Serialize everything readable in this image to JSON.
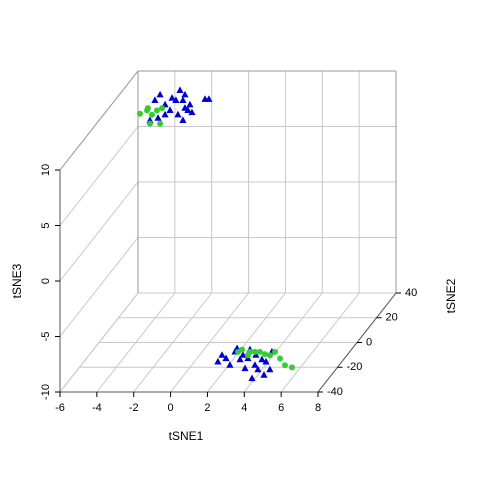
{
  "chart_data": {
    "type": "scatter3d",
    "xlabel": "tSNE1",
    "ylabel": "tSNE2",
    "zlabel": "tSNE3",
    "xlim": [
      -6,
      8
    ],
    "ylim": [
      -40,
      40
    ],
    "zlim": [
      -10,
      10
    ],
    "xticks": [
      -6,
      -4,
      -2,
      0,
      2,
      4,
      6,
      8
    ],
    "yticks": [
      -40,
      -20,
      0,
      20,
      40
    ],
    "zticks": [
      -10,
      -5,
      0,
      5,
      10
    ],
    "grid": true,
    "series": [
      {
        "color": "#0000cd",
        "marker": "triangle",
        "x": [
          -4.87,
          -4.59,
          -4.32,
          -4.05,
          -3.94,
          -3.73,
          -3.51,
          -3.35,
          -3.24,
          -3.08,
          -2.97,
          -2.86,
          -3.62,
          -3.35,
          -4.32,
          -2.15,
          -1.94,
          -5.14,
          -4.7,
          -3.24,
          2.04,
          2.26,
          2.48,
          2.97,
          3.08,
          3.24,
          3.4,
          3.67,
          3.78,
          4.05,
          4.21,
          4.43,
          4.65,
          4.86,
          4.97,
          3.51,
          3.89,
          4.54,
          2.69,
          4.1
        ],
        "y": [
          36,
          36,
          36,
          36,
          36,
          36,
          36,
          36,
          36,
          36,
          36,
          36,
          36,
          36,
          36,
          36,
          36,
          36,
          36,
          36,
          -30,
          -30,
          -30,
          -30,
          -30,
          -30,
          -30,
          -30,
          -30,
          -30,
          -30,
          -30,
          -30,
          -30,
          -30,
          -30,
          -30,
          -30,
          -30,
          -30
        ],
        "z": [
          7.8,
          8.3,
          7.4,
          6.9,
          8.0,
          7.8,
          8.7,
          7.8,
          8.3,
          6.9,
          7.4,
          6.7,
          6.5,
          6.0,
          6.5,
          7.9,
          7.9,
          6.0,
          6.2,
          7.1,
          -8.4,
          -7.8,
          -8.1,
          -7.5,
          -7.2,
          -8.2,
          -7.8,
          -8.1,
          -7.3,
          -8.7,
          -9.1,
          -8.2,
          -8.4,
          -9.1,
          -7.5,
          -9.0,
          -9.9,
          -9.6,
          -8.7,
          -7.8
        ]
      },
      {
        "color": "#33cc33",
        "marker": "circle",
        "x": [
          -5.68,
          -5.3,
          -5.03,
          -4.76,
          -4.59,
          -5.14,
          -5.25,
          -4.48,
          3.13,
          3.35,
          3.78,
          4.05,
          4.32,
          4.59,
          4.86,
          5.14,
          5.68,
          6.06,
          5.41,
          3.67
        ],
        "y": [
          36,
          36,
          36,
          36,
          36,
          36,
          36,
          36,
          -30,
          -30,
          -30,
          -30,
          -30,
          -30,
          -30,
          -30,
          -30,
          -30,
          -30,
          -30
        ],
        "z": [
          6.6,
          6.9,
          6.5,
          6.9,
          5.7,
          5.7,
          7.1,
          7.1,
          -7.5,
          -7.3,
          -7.5,
          -7.5,
          -7.5,
          -7.7,
          -7.8,
          -7.5,
          -8.7,
          -8.9,
          -8.1,
          -7.8
        ]
      }
    ]
  }
}
